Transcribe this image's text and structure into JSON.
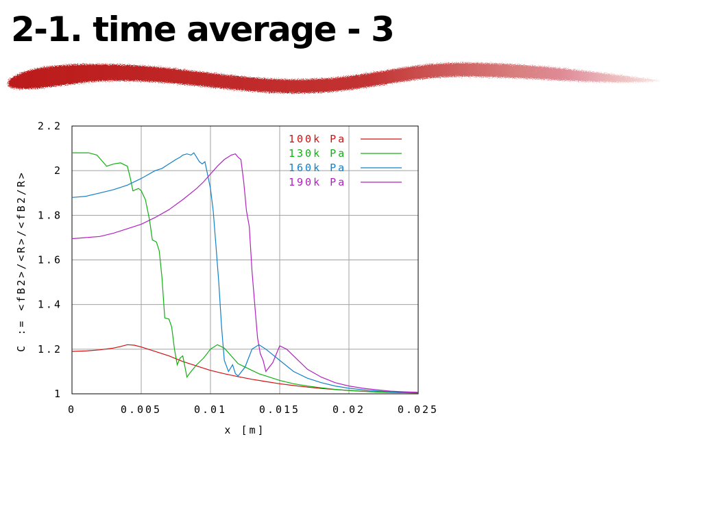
{
  "slide": {
    "title": "2-1. time average - 3"
  },
  "colors": {
    "brush": "#b80d12",
    "grid": "#a0a0a0",
    "axes": "#000000",
    "text": "#000000"
  },
  "chart_data": {
    "type": "line",
    "xlabel": "x [m]",
    "ylabel": "C := <fB2>/<R>/<fB2/R>",
    "xlim": [
      0,
      0.025
    ],
    "ylim": [
      1,
      2.2
    ],
    "xticks": [
      "0",
      "0.005",
      "0.01",
      "0.015",
      "0.02",
      "0.025"
    ],
    "yticks": [
      "1",
      "1.2",
      "1.4",
      "1.6",
      "1.8",
      "2",
      "2.2"
    ],
    "grid": true,
    "legend_position": "top-right",
    "series": [
      {
        "name": "100k Pa",
        "color": "#d01010",
        "points": [
          [
            0,
            1.19
          ],
          [
            0.001,
            1.192
          ],
          [
            0.002,
            1.197
          ],
          [
            0.003,
            1.205
          ],
          [
            0.0035,
            1.212
          ],
          [
            0.004,
            1.22
          ],
          [
            0.0045,
            1.218
          ],
          [
            0.005,
            1.21
          ],
          [
            0.006,
            1.19
          ],
          [
            0.007,
            1.17
          ],
          [
            0.008,
            1.145
          ],
          [
            0.009,
            1.125
          ],
          [
            0.01,
            1.105
          ],
          [
            0.011,
            1.09
          ],
          [
            0.012,
            1.077
          ],
          [
            0.013,
            1.065
          ],
          [
            0.014,
            1.055
          ],
          [
            0.015,
            1.045
          ],
          [
            0.016,
            1.037
          ],
          [
            0.017,
            1.03
          ],
          [
            0.018,
            1.024
          ],
          [
            0.019,
            1.019
          ],
          [
            0.02,
            1.015
          ],
          [
            0.021,
            1.012
          ],
          [
            0.022,
            1.009
          ],
          [
            0.023,
            1.007
          ],
          [
            0.024,
            1.005
          ],
          [
            0.025,
            1.004
          ]
        ]
      },
      {
        "name": "130k Pa",
        "color": "#10b010",
        "points": [
          [
            0,
            2.08
          ],
          [
            0.0012,
            2.08
          ],
          [
            0.0018,
            2.07
          ],
          [
            0.0025,
            2.02
          ],
          [
            0.003,
            2.03
          ],
          [
            0.0035,
            2.035
          ],
          [
            0.004,
            2.02
          ],
          [
            0.0042,
            1.97
          ],
          [
            0.0044,
            1.91
          ],
          [
            0.0048,
            1.92
          ],
          [
            0.005,
            1.91
          ],
          [
            0.0053,
            1.87
          ],
          [
            0.0056,
            1.78
          ],
          [
            0.0058,
            1.69
          ],
          [
            0.0061,
            1.68
          ],
          [
            0.0063,
            1.64
          ],
          [
            0.0065,
            1.52
          ],
          [
            0.0067,
            1.34
          ],
          [
            0.007,
            1.335
          ],
          [
            0.0072,
            1.3
          ],
          [
            0.0074,
            1.2
          ],
          [
            0.0076,
            1.13
          ],
          [
            0.0078,
            1.16
          ],
          [
            0.008,
            1.17
          ],
          [
            0.0083,
            1.075
          ],
          [
            0.0086,
            1.1
          ],
          [
            0.009,
            1.13
          ],
          [
            0.0095,
            1.16
          ],
          [
            0.01,
            1.2
          ],
          [
            0.0105,
            1.22
          ],
          [
            0.011,
            1.205
          ],
          [
            0.0115,
            1.17
          ],
          [
            0.012,
            1.135
          ],
          [
            0.0125,
            1.12
          ],
          [
            0.013,
            1.105
          ],
          [
            0.0135,
            1.09
          ],
          [
            0.014,
            1.08
          ],
          [
            0.015,
            1.06
          ],
          [
            0.016,
            1.045
          ],
          [
            0.017,
            1.035
          ],
          [
            0.018,
            1.027
          ],
          [
            0.019,
            1.02
          ],
          [
            0.02,
            1.015
          ],
          [
            0.021,
            1.011
          ],
          [
            0.022,
            1.008
          ],
          [
            0.023,
            1.006
          ],
          [
            0.024,
            1.005
          ],
          [
            0.025,
            1.004
          ]
        ]
      },
      {
        "name": "160k Pa",
        "color": "#1080c8",
        "points": [
          [
            0,
            1.88
          ],
          [
            0.001,
            1.885
          ],
          [
            0.002,
            1.9
          ],
          [
            0.003,
            1.915
          ],
          [
            0.004,
            1.935
          ],
          [
            0.005,
            1.965
          ],
          [
            0.006,
            2.0
          ],
          [
            0.0065,
            2.01
          ],
          [
            0.007,
            2.03
          ],
          [
            0.0075,
            2.05
          ],
          [
            0.0078,
            2.06
          ],
          [
            0.008,
            2.07
          ],
          [
            0.0083,
            2.075
          ],
          [
            0.0086,
            2.07
          ],
          [
            0.0088,
            2.08
          ],
          [
            0.009,
            2.06
          ],
          [
            0.0092,
            2.04
          ],
          [
            0.0094,
            2.03
          ],
          [
            0.0096,
            2.04
          ],
          [
            0.0098,
            1.98
          ],
          [
            0.01,
            1.92
          ],
          [
            0.0102,
            1.82
          ],
          [
            0.0104,
            1.66
          ],
          [
            0.0106,
            1.5
          ],
          [
            0.0108,
            1.3
          ],
          [
            0.011,
            1.15
          ],
          [
            0.0113,
            1.1
          ],
          [
            0.0116,
            1.13
          ],
          [
            0.0118,
            1.09
          ],
          [
            0.012,
            1.08
          ],
          [
            0.0125,
            1.12
          ],
          [
            0.013,
            1.2
          ],
          [
            0.0135,
            1.22
          ],
          [
            0.014,
            1.2
          ],
          [
            0.015,
            1.15
          ],
          [
            0.016,
            1.1
          ],
          [
            0.017,
            1.07
          ],
          [
            0.018,
            1.05
          ],
          [
            0.019,
            1.035
          ],
          [
            0.02,
            1.025
          ],
          [
            0.021,
            1.018
          ],
          [
            0.022,
            1.013
          ],
          [
            0.023,
            1.009
          ],
          [
            0.024,
            1.007
          ],
          [
            0.025,
            1.005
          ]
        ]
      },
      {
        "name": "190k Pa",
        "color": "#b020c0",
        "points": [
          [
            0,
            1.695
          ],
          [
            0.001,
            1.7
          ],
          [
            0.002,
            1.705
          ],
          [
            0.003,
            1.72
          ],
          [
            0.004,
            1.74
          ],
          [
            0.005,
            1.76
          ],
          [
            0.006,
            1.79
          ],
          [
            0.007,
            1.825
          ],
          [
            0.008,
            1.87
          ],
          [
            0.009,
            1.92
          ],
          [
            0.0095,
            1.95
          ],
          [
            0.01,
            1.985
          ],
          [
            0.0105,
            2.02
          ],
          [
            0.011,
            2.05
          ],
          [
            0.0115,
            2.07
          ],
          [
            0.0118,
            2.075
          ],
          [
            0.012,
            2.06
          ],
          [
            0.0122,
            2.05
          ],
          [
            0.0124,
            1.95
          ],
          [
            0.0126,
            1.82
          ],
          [
            0.0128,
            1.75
          ],
          [
            0.013,
            1.55
          ],
          [
            0.0132,
            1.4
          ],
          [
            0.0134,
            1.25
          ],
          [
            0.0136,
            1.18
          ],
          [
            0.0138,
            1.15
          ],
          [
            0.014,
            1.1
          ],
          [
            0.0145,
            1.14
          ],
          [
            0.015,
            1.215
          ],
          [
            0.0155,
            1.2
          ],
          [
            0.016,
            1.17
          ],
          [
            0.017,
            1.11
          ],
          [
            0.018,
            1.075
          ],
          [
            0.019,
            1.05
          ],
          [
            0.02,
            1.035
          ],
          [
            0.021,
            1.025
          ],
          [
            0.022,
            1.018
          ],
          [
            0.023,
            1.012
          ],
          [
            0.024,
            1.009
          ],
          [
            0.025,
            1.007
          ]
        ]
      }
    ]
  }
}
